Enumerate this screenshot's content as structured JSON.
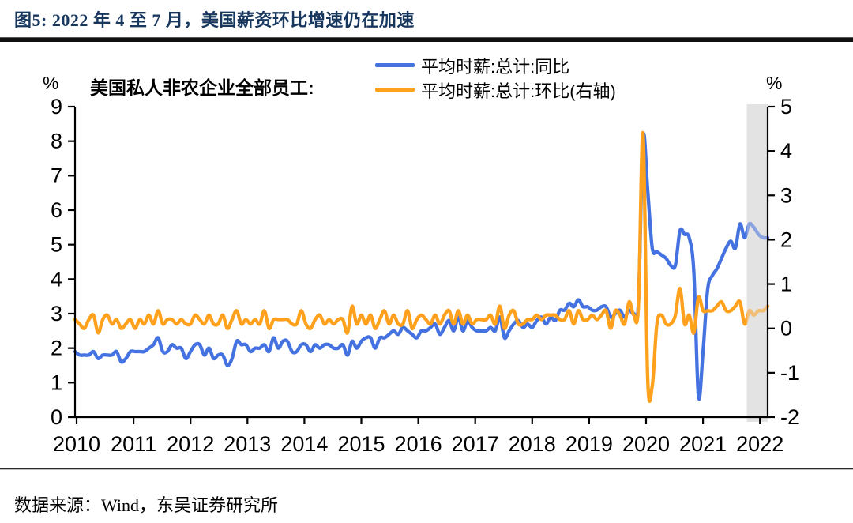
{
  "title": "图5:  2022 年 4 至 7 月，美国薪资环比增速仍在加速",
  "source": "数据来源：Wind，东吴证券研究所",
  "chart_header_label": "美国私人非农企业全部员工:",
  "chart_data": {
    "type": "line",
    "x_start": "2010-01",
    "x_end": "2022-07",
    "x_tick_labels": [
      "2010",
      "2011",
      "2012",
      "2013",
      "2014",
      "2015",
      "2016",
      "2017",
      "2018",
      "2019",
      "2020",
      "2021",
      "2022"
    ],
    "left_axis": {
      "unit": "%",
      "min": 0,
      "max": 9,
      "ticks": [
        0,
        1,
        2,
        3,
        4,
        5,
        6,
        7,
        8,
        9
      ]
    },
    "right_axis": {
      "unit": "%",
      "min": -2,
      "max": 5,
      "ticks": [
        -2,
        -1,
        0,
        1,
        2,
        3,
        4,
        5
      ]
    },
    "highlight_band": {
      "from": "2022-03",
      "to": "2022-07",
      "color": "#E3E3E3"
    },
    "legend_position": "top-center",
    "grid": false,
    "series": [
      {
        "name": "平均时薪:总计:同比",
        "axis": "left",
        "color": "#4472E0",
        "values": [
          1.9,
          1.8,
          1.8,
          1.8,
          1.9,
          1.7,
          1.8,
          1.8,
          1.8,
          1.9,
          1.6,
          1.7,
          1.9,
          1.9,
          1.9,
          1.9,
          2.0,
          2.1,
          2.3,
          1.9,
          1.9,
          2.1,
          2.0,
          2.0,
          1.7,
          1.9,
          2.1,
          2.1,
          1.8,
          2.0,
          1.7,
          1.8,
          1.8,
          1.5,
          1.7,
          2.2,
          2.1,
          2.1,
          1.9,
          2.0,
          2.0,
          2.1,
          1.9,
          2.3,
          2.0,
          2.2,
          2.2,
          1.9,
          1.9,
          2.1,
          2.1,
          1.9,
          2.1,
          2.0,
          2.1,
          2.1,
          2.0,
          2.0,
          2.1,
          1.8,
          2.2,
          2.0,
          2.2,
          2.3,
          2.3,
          2.0,
          2.3,
          2.3,
          2.4,
          2.5,
          2.4,
          2.6,
          2.5,
          2.4,
          2.3,
          2.5,
          2.5,
          2.6,
          2.7,
          2.4,
          2.6,
          2.8,
          2.5,
          2.9,
          2.5,
          2.8,
          2.6,
          2.5,
          2.5,
          2.5,
          2.6,
          2.5,
          2.9,
          2.3,
          2.5,
          2.7,
          2.8,
          2.6,
          2.7,
          2.6,
          2.8,
          2.9,
          2.7,
          2.9,
          2.8,
          3.1,
          3.1,
          3.3,
          3.2,
          3.4,
          3.2,
          3.2,
          3.1,
          3.1,
          3.2,
          3.2,
          2.9,
          3.0,
          3.1,
          2.9,
          3.1,
          3.0,
          3.3,
          8.1,
          6.6,
          4.9,
          4.8,
          4.7,
          4.6,
          4.4,
          4.4,
          5.4,
          5.3,
          5.2,
          4.2,
          0.6,
          1.9,
          3.7,
          4.1,
          4.3,
          4.6,
          4.9,
          5.1,
          4.9,
          5.6,
          5.2,
          5.6,
          5.5,
          5.3,
          5.2,
          5.2
        ]
      },
      {
        "name": "平均时薪:总计:环比(右轴)",
        "axis": "right",
        "color": "#FFA11C",
        "values": [
          0.2,
          0.1,
          0.0,
          0.2,
          0.3,
          -0.1,
          0.2,
          0.3,
          0.1,
          0.2,
          0.0,
          0.1,
          0.2,
          0.0,
          0.2,
          0.1,
          0.3,
          0.1,
          0.4,
          0.1,
          0.2,
          0.2,
          0.1,
          0.2,
          0.1,
          0.1,
          0.3,
          0.2,
          0.1,
          0.3,
          0.1,
          0.1,
          0.3,
          0.0,
          0.2,
          0.4,
          0.1,
          0.2,
          0.1,
          0.2,
          0.1,
          0.4,
          0.0,
          0.2,
          0.2,
          0.2,
          0.2,
          0.1,
          0.1,
          0.4,
          0.1,
          0.0,
          0.2,
          0.3,
          0.1,
          0.2,
          0.1,
          0.2,
          0.2,
          -0.1,
          0.5,
          0.1,
          0.3,
          0.1,
          0.3,
          0.0,
          0.2,
          0.4,
          0.1,
          0.3,
          0.1,
          0.1,
          0.4,
          0.0,
          0.2,
          0.3,
          0.2,
          0.1,
          0.3,
          0.1,
          0.3,
          0.4,
          0.1,
          0.4,
          0.1,
          0.3,
          0.1,
          0.2,
          0.2,
          0.2,
          0.3,
          0.1,
          0.5,
          0.0,
          0.3,
          0.4,
          0.1,
          0.1,
          0.2,
          0.2,
          0.3,
          0.2,
          0.3,
          0.3,
          0.3,
          0.2,
          0.2,
          0.4,
          0.1,
          0.4,
          0.2,
          0.2,
          0.3,
          0.2,
          0.3,
          0.4,
          0.0,
          0.4,
          0.3,
          0.1,
          0.6,
          0.3,
          0.5,
          4.4,
          -1.1,
          -1.3,
          0.1,
          0.3,
          0.1,
          0.1,
          0.3,
          0.9,
          0.1,
          0.3,
          -0.1,
          0.7,
          0.4,
          0.4,
          0.4,
          0.5,
          0.6,
          0.4,
          0.4,
          0.5,
          0.6,
          0.1,
          0.4,
          0.3,
          0.4,
          0.4,
          0.5
        ]
      }
    ]
  }
}
